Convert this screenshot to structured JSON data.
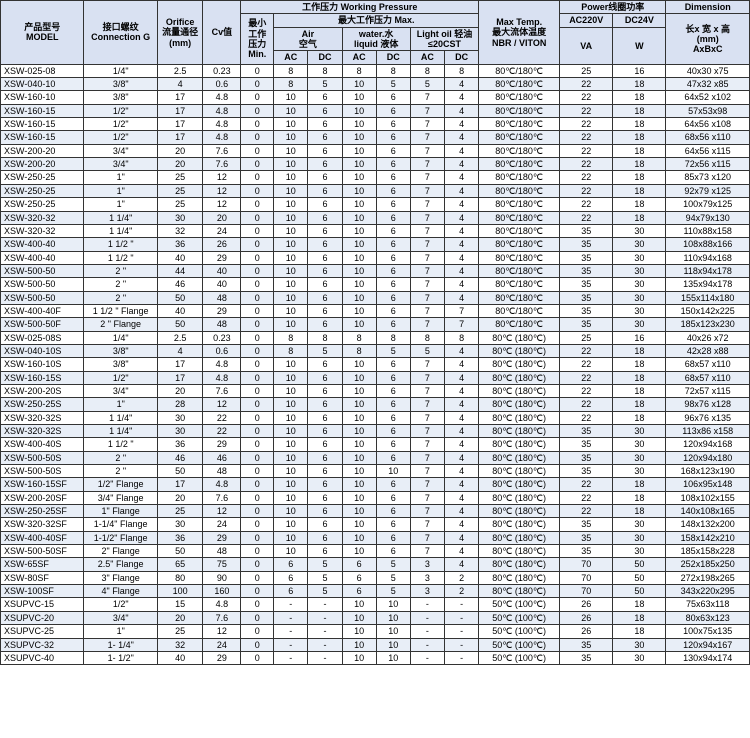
{
  "headers": {
    "model": "产品型号\nMODEL",
    "connection": "接口螺纹\nConnection G",
    "orifice": "Orifice\n流量通径\n(mm)",
    "cv": "Cv值",
    "working_pressure": "工作压力 Working Pressure",
    "min": "最小\n工作\n压力\nMin.",
    "max": "最大工作压力 Max.",
    "air": "Air\n空气",
    "water": "water.水\nliquid 液体",
    "lightoil": "Light oil 轻油\n≤20CST",
    "ac": "AC",
    "dc": "DC",
    "maxtemp": "Max Temp.\n最大流体温度\nNBR / VITON",
    "power": "Power线圈功率",
    "ac220v": "AC220V",
    "dc24v": "DC24V",
    "va": "VA",
    "w": "W",
    "dimension": "Dimension",
    "dim2": "长x 宽 x 高\n(mm)\nAxBxC"
  },
  "rows": [
    [
      "XSW-025-08",
      "1/4\"",
      "2.5",
      "0.23",
      "0",
      "8",
      "8",
      "8",
      "8",
      "8",
      "8",
      "80℃/180℃",
      "25",
      "16",
      "40x30 x75"
    ],
    [
      "XSW-040-10",
      "3/8\"",
      "4",
      "0.6",
      "0",
      "8",
      "5",
      "10",
      "5",
      "5",
      "4",
      "80℃/180℃",
      "22",
      "18",
      "47x32 x85"
    ],
    [
      "XSW-160-10",
      "3/8\"",
      "17",
      "4.8",
      "0",
      "10",
      "6",
      "10",
      "6",
      "7",
      "4",
      "80℃/180℃",
      "22",
      "18",
      "64x52 x102"
    ],
    [
      "XSW-160-15",
      "1/2\"",
      "17",
      "4.8",
      "0",
      "10",
      "6",
      "10",
      "6",
      "7",
      "4",
      "80℃/180℃",
      "22",
      "18",
      "57x53x98"
    ],
    [
      "XSW-160-15",
      "1/2\"",
      "17",
      "4.8",
      "0",
      "10",
      "6",
      "10",
      "6",
      "7",
      "4",
      "80℃/180℃",
      "22",
      "18",
      "64x56 x108"
    ],
    [
      "XSW-160-15",
      "1/2\"",
      "17",
      "4.8",
      "0",
      "10",
      "6",
      "10",
      "6",
      "7",
      "4",
      "80℃/180℃",
      "22",
      "18",
      "68x56 x110"
    ],
    [
      "XSW-200-20",
      "3/4\"",
      "20",
      "7.6",
      "0",
      "10",
      "6",
      "10",
      "6",
      "7",
      "4",
      "80℃/180℃",
      "22",
      "18",
      "64x56 x115"
    ],
    [
      "XSW-200-20",
      "3/4\"",
      "20",
      "7.6",
      "0",
      "10",
      "6",
      "10",
      "6",
      "7",
      "4",
      "80℃/180℃",
      "22",
      "18",
      "72x56 x115"
    ],
    [
      "XSW-250-25",
      "1\"",
      "25",
      "12",
      "0",
      "10",
      "6",
      "10",
      "6",
      "7",
      "4",
      "80℃/180℃",
      "22",
      "18",
      "85x73 x120"
    ],
    [
      "XSW-250-25",
      "1\"",
      "25",
      "12",
      "0",
      "10",
      "6",
      "10",
      "6",
      "7",
      "4",
      "80℃/180℃",
      "22",
      "18",
      "92x79 x125"
    ],
    [
      "XSW-250-25",
      "1\"",
      "25",
      "12",
      "0",
      "10",
      "6",
      "10",
      "6",
      "7",
      "4",
      "80℃/180℃",
      "22",
      "18",
      "100x79x125"
    ],
    [
      "XSW-320-32",
      "1 1/4\"",
      "30",
      "20",
      "0",
      "10",
      "6",
      "10",
      "6",
      "7",
      "4",
      "80℃/180℃",
      "22",
      "18",
      "94x79x130"
    ],
    [
      "XSW-320-32",
      "1 1/4\"",
      "32",
      "24",
      "0",
      "10",
      "6",
      "10",
      "6",
      "7",
      "4",
      "80℃/180℃",
      "35",
      "30",
      "110x88x158"
    ],
    [
      "XSW-400-40",
      "1 1/2 \"",
      "36",
      "26",
      "0",
      "10",
      "6",
      "10",
      "6",
      "7",
      "4",
      "80℃/180℃",
      "35",
      "30",
      "108x88x166"
    ],
    [
      "XSW-400-40",
      "1 1/2 \"",
      "40",
      "29",
      "0",
      "10",
      "6",
      "10",
      "6",
      "7",
      "4",
      "80℃/180℃",
      "35",
      "30",
      "110x94x168"
    ],
    [
      "XSW-500-50",
      "2 \"",
      "44",
      "40",
      "0",
      "10",
      "6",
      "10",
      "6",
      "7",
      "4",
      "80℃/180℃",
      "35",
      "30",
      "118x94x178"
    ],
    [
      "XSW-500-50",
      "2 \"",
      "46",
      "40",
      "0",
      "10",
      "6",
      "10",
      "6",
      "7",
      "4",
      "80℃/180℃",
      "35",
      "30",
      "135x94x178"
    ],
    [
      "XSW-500-50",
      "2 \"",
      "50",
      "48",
      "0",
      "10",
      "6",
      "10",
      "6",
      "7",
      "4",
      "80℃/180℃",
      "35",
      "30",
      "155x114x180"
    ],
    [
      "XSW-400-40F",
      "1 1/2 \" Flange",
      "40",
      "29",
      "0",
      "10",
      "6",
      "10",
      "6",
      "7",
      "7",
      "80℃/180℃",
      "35",
      "30",
      "150x142x225"
    ],
    [
      "XSW-500-50F",
      "2 \" Flange",
      "50",
      "48",
      "0",
      "10",
      "6",
      "10",
      "6",
      "7",
      "7",
      "80℃/180℃",
      "35",
      "30",
      "185x123x230"
    ],
    [
      "XSW-025-08S",
      "1/4\"",
      "2.5",
      "0.23",
      "0",
      "8",
      "8",
      "8",
      "8",
      "8",
      "8",
      "80℃ (180℃)",
      "25",
      "16",
      "40x26 x72"
    ],
    [
      "XSW-040-10S",
      "3/8\"",
      "4",
      "0.6",
      "0",
      "8",
      "5",
      "8",
      "5",
      "5",
      "4",
      "80℃ (180℃)",
      "22",
      "18",
      "42x28 x88"
    ],
    [
      "XSW-160-10S",
      "3/8\"",
      "17",
      "4.8",
      "0",
      "10",
      "6",
      "10",
      "6",
      "7",
      "4",
      "80℃ (180℃)",
      "22",
      "18",
      "68x57 x110"
    ],
    [
      "XSW-160-15S",
      "1/2\"",
      "17",
      "4.8",
      "0",
      "10",
      "6",
      "10",
      "6",
      "7",
      "4",
      "80℃ (180℃)",
      "22",
      "18",
      "68x57 x110"
    ],
    [
      "XSW-200-20S",
      "3/4\"",
      "20",
      "7.6",
      "0",
      "10",
      "6",
      "10",
      "6",
      "7",
      "4",
      "80℃ (180℃)",
      "22",
      "18",
      "72x57 x115"
    ],
    [
      "XSW-250-25S",
      "1\"",
      "28",
      "12",
      "0",
      "10",
      "6",
      "10",
      "6",
      "7",
      "4",
      "80℃ (180℃)",
      "22",
      "18",
      "98x76 x128"
    ],
    [
      "XSW-320-32S",
      "1 1/4\"",
      "30",
      "22",
      "0",
      "10",
      "6",
      "10",
      "6",
      "7",
      "4",
      "80℃ (180℃)",
      "22",
      "18",
      "96x76 x135"
    ],
    [
      "XSW-320-32S",
      "1 1/4\"",
      "30",
      "22",
      "0",
      "10",
      "6",
      "10",
      "6",
      "7",
      "4",
      "80℃ (180℃)",
      "35",
      "30",
      "113x86 x158"
    ],
    [
      "XSW-400-40S",
      "1 1/2 \"",
      "36",
      "29",
      "0",
      "10",
      "6",
      "10",
      "6",
      "7",
      "4",
      "80℃ (180℃)",
      "35",
      "30",
      "120x94x168"
    ],
    [
      "XSW-500-50S",
      "2 \"",
      "46",
      "46",
      "0",
      "10",
      "6",
      "10",
      "6",
      "7",
      "4",
      "80℃ (180℃)",
      "35",
      "30",
      "120x94x180"
    ],
    [
      "XSW-500-50S",
      "2 \"",
      "50",
      "48",
      "0",
      "10",
      "6",
      "10",
      "10",
      "7",
      "4",
      "80℃ (180℃)",
      "35",
      "30",
      "168x123x190"
    ],
    [
      "XSW-160-15SF",
      "1/2\" Flange",
      "17",
      "4.8",
      "0",
      "10",
      "6",
      "10",
      "6",
      "7",
      "4",
      "80℃ (180℃)",
      "22",
      "18",
      "106x95x148"
    ],
    [
      "XSW-200-20SF",
      "3/4\" Flange",
      "20",
      "7.6",
      "0",
      "10",
      "6",
      "10",
      "6",
      "7",
      "4",
      "80℃ (180℃)",
      "22",
      "18",
      "108x102x155"
    ],
    [
      "XSW-250-25SF",
      "1\"  Flange",
      "25",
      "12",
      "0",
      "10",
      "6",
      "10",
      "6",
      "7",
      "4",
      "80℃ (180℃)",
      "22",
      "18",
      "140x108x165"
    ],
    [
      "XSW-320-32SF",
      "1-1/4\"  Flange",
      "30",
      "24",
      "0",
      "10",
      "6",
      "10",
      "6",
      "7",
      "4",
      "80℃ (180℃)",
      "35",
      "30",
      "148x132x200"
    ],
    [
      "XSW-400-40SF",
      "1-1/2\"  Flange",
      "36",
      "29",
      "0",
      "10",
      "6",
      "10",
      "6",
      "7",
      "4",
      "80℃ (180℃)",
      "35",
      "30",
      "158x142x210"
    ],
    [
      "XSW-500-50SF",
      "2\"  Flange",
      "50",
      "48",
      "0",
      "10",
      "6",
      "10",
      "6",
      "7",
      "4",
      "80℃ (180℃)",
      "35",
      "30",
      "185x158x228"
    ],
    [
      "XSW-65SF",
      "2.5\"  Flange",
      "65",
      "75",
      "0",
      "6",
      "5",
      "6",
      "5",
      "3",
      "4",
      "80℃ (180℃)",
      "70",
      "50",
      "252x185x250"
    ],
    [
      "XSW-80SF",
      "3\"  Flange",
      "80",
      "90",
      "0",
      "6",
      "5",
      "6",
      "5",
      "3",
      "2",
      "80℃ (180℃)",
      "70",
      "50",
      "272x198x265"
    ],
    [
      "XSW-100SF",
      "4\"  Flange",
      "100",
      "160",
      "0",
      "6",
      "5",
      "6",
      "5",
      "3",
      "2",
      "80℃ (180℃)",
      "70",
      "50",
      "343x220x295"
    ],
    [
      "XSUPVC-15",
      "1/2\"",
      "15",
      "4.8",
      "0",
      "-",
      "-",
      "10",
      "10",
      "-",
      "-",
      "50℃ (100℃)",
      "26",
      "18",
      "75x63x118"
    ],
    [
      "XSUPVC-20",
      "3/4\"",
      "20",
      "7.6",
      "0",
      "-",
      "-",
      "10",
      "10",
      "-",
      "-",
      "50℃ (100℃)",
      "26",
      "18",
      "80x63x123"
    ],
    [
      "XSUPVC-25",
      "1\"",
      "25",
      "12",
      "0",
      "-",
      "-",
      "10",
      "10",
      "-",
      "-",
      "50℃ (100℃)",
      "26",
      "18",
      "100x75x135"
    ],
    [
      "XSUPVC-32",
      "1- 1/4\"",
      "32",
      "24",
      "0",
      "-",
      "-",
      "10",
      "10",
      "-",
      "-",
      "50℃ (100℃)",
      "35",
      "30",
      "120x94x167"
    ],
    [
      "XSUPVC-40",
      "1- 1/2\"",
      "40",
      "29",
      "0",
      "-",
      "-",
      "10",
      "10",
      "-",
      "-",
      "50℃ (100℃)",
      "35",
      "30",
      "130x94x174"
    ]
  ],
  "stripe_color": "#e8eef7",
  "header_bg": "#d9e1f2"
}
